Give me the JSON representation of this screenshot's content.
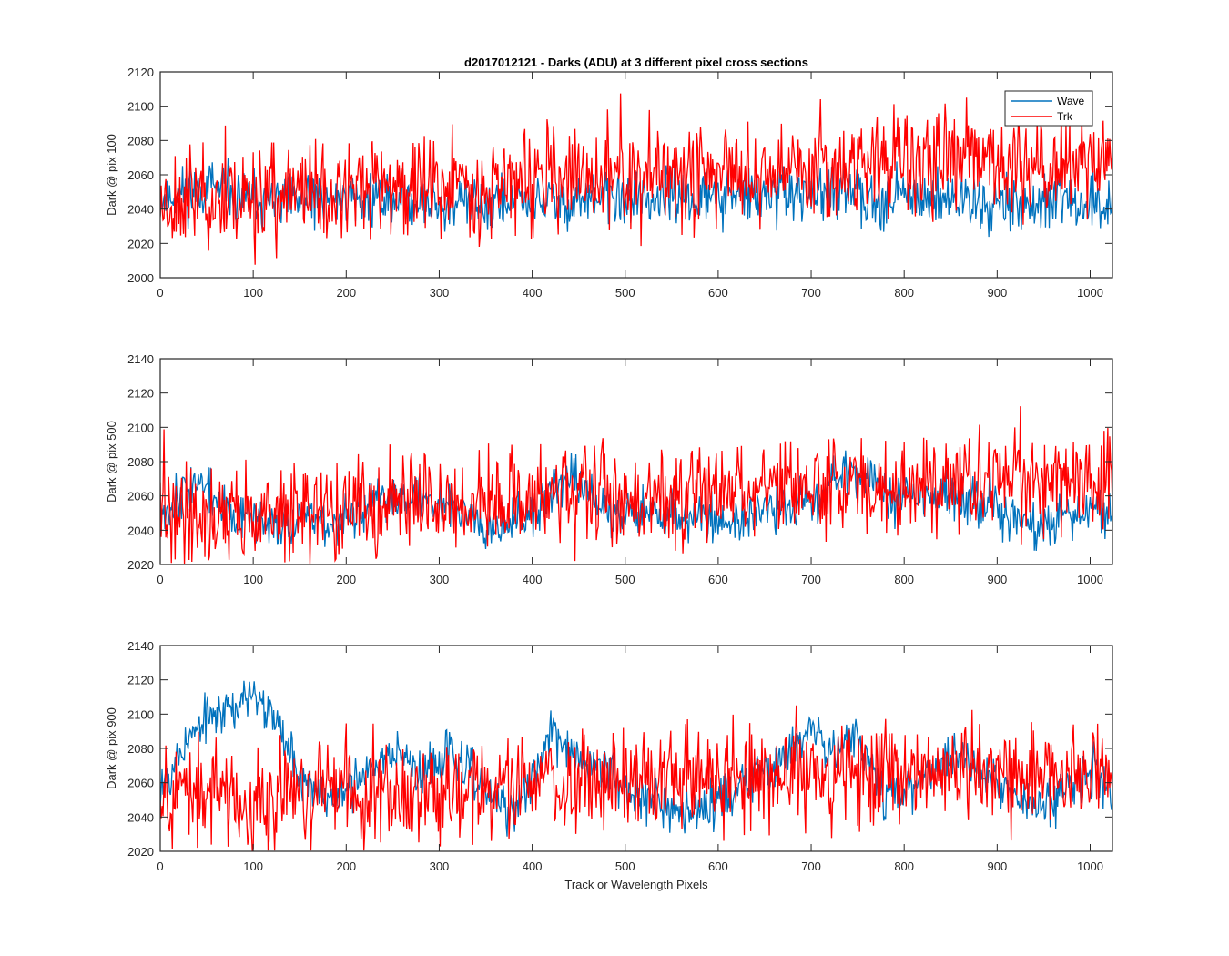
{
  "chart_data": [
    {
      "type": "line",
      "title": "d2017012121 - Darks (ADU) at 3 different pixel cross sections",
      "ylabel": "Dark @ pix 100",
      "xlabel": "",
      "xlim": [
        0,
        1024
      ],
      "ylim": [
        2000,
        2120
      ],
      "xticks": [
        0,
        100,
        200,
        300,
        400,
        500,
        600,
        700,
        800,
        900,
        1000
      ],
      "yticks": [
        2000,
        2020,
        2040,
        2060,
        2080,
        2100,
        2120
      ],
      "legend": {
        "placement": "top-right",
        "entries": [
          "Wave",
          "Trk"
        ]
      },
      "series": [
        {
          "name": "Wave",
          "color": "#0072BD",
          "baseline": [
            [
              0,
              2046
            ],
            [
              50,
              2053
            ],
            [
              100,
              2044
            ],
            [
              150,
              2044
            ],
            [
              200,
              2047
            ],
            [
              300,
              2043
            ],
            [
              400,
              2044
            ],
            [
              500,
              2046
            ],
            [
              600,
              2047
            ],
            [
              700,
              2048
            ],
            [
              800,
              2048
            ],
            [
              900,
              2044
            ],
            [
              1000,
              2043
            ],
            [
              1024,
              2040
            ]
          ],
          "noise": 8,
          "seed": 11
        },
        {
          "name": "Trk",
          "color": "#FF0000",
          "baseline": [
            [
              0,
              2045
            ],
            [
              100,
              2048
            ],
            [
              200,
              2050
            ],
            [
              300,
              2054
            ],
            [
              400,
              2057
            ],
            [
              500,
              2058
            ],
            [
              600,
              2062
            ],
            [
              700,
              2065
            ],
            [
              800,
              2068
            ],
            [
              900,
              2067
            ],
            [
              1000,
              2066
            ],
            [
              1024,
              2067
            ]
          ],
          "noise": 15,
          "seed": 23
        }
      ]
    },
    {
      "type": "line",
      "title": "",
      "ylabel": "Dark @ pix 500",
      "xlabel": "",
      "xlim": [
        0,
        1024
      ],
      "ylim": [
        2020,
        2140
      ],
      "xticks": [
        0,
        100,
        200,
        300,
        400,
        500,
        600,
        700,
        800,
        900,
        1000
      ],
      "yticks": [
        2020,
        2040,
        2060,
        2080,
        2100,
        2120,
        2140
      ],
      "series": [
        {
          "name": "Wave",
          "color": "#0072BD",
          "baseline": [
            [
              0,
              2050
            ],
            [
              40,
              2070
            ],
            [
              80,
              2045
            ],
            [
              150,
              2045
            ],
            [
              200,
              2046
            ],
            [
              250,
              2060
            ],
            [
              300,
              2058
            ],
            [
              350,
              2045
            ],
            [
              400,
              2048
            ],
            [
              440,
              2072
            ],
            [
              480,
              2052
            ],
            [
              550,
              2050
            ],
            [
              600,
              2045
            ],
            [
              650,
              2050
            ],
            [
              700,
              2058
            ],
            [
              740,
              2078
            ],
            [
              780,
              2060
            ],
            [
              850,
              2060
            ],
            [
              900,
              2052
            ],
            [
              940,
              2040
            ],
            [
              1000,
              2054
            ],
            [
              1024,
              2050
            ]
          ],
          "noise": 7,
          "seed": 37
        },
        {
          "name": "Trk",
          "color": "#FF0000",
          "baseline": [
            [
              0,
              2050
            ],
            [
              100,
              2048
            ],
            [
              200,
              2052
            ],
            [
              300,
              2057
            ],
            [
              400,
              2058
            ],
            [
              500,
              2060
            ],
            [
              600,
              2062
            ],
            [
              700,
              2066
            ],
            [
              800,
              2066
            ],
            [
              900,
              2070
            ],
            [
              1000,
              2068
            ],
            [
              1024,
              2066
            ]
          ],
          "noise": 14,
          "seed": 41
        }
      ]
    },
    {
      "type": "line",
      "title": "",
      "ylabel": "Dark @ pix 900",
      "xlabel": "Track or Wavelength Pixels",
      "xlim": [
        0,
        1024
      ],
      "ylim": [
        2020,
        2140
      ],
      "xticks": [
        0,
        100,
        200,
        300,
        400,
        500,
        600,
        700,
        800,
        900,
        1000
      ],
      "yticks": [
        2020,
        2040,
        2060,
        2080,
        2100,
        2120,
        2140
      ],
      "series": [
        {
          "name": "Wave",
          "color": "#0072BD",
          "baseline": [
            [
              0,
              2060
            ],
            [
              30,
              2085
            ],
            [
              60,
              2102
            ],
            [
              100,
              2108
            ],
            [
              130,
              2095
            ],
            [
              150,
              2065
            ],
            [
              180,
              2050
            ],
            [
              220,
              2062
            ],
            [
              255,
              2082
            ],
            [
              280,
              2062
            ],
            [
              310,
              2080
            ],
            [
              350,
              2055
            ],
            [
              380,
              2040
            ],
            [
              420,
              2088
            ],
            [
              460,
              2070
            ],
            [
              500,
              2060
            ],
            [
              560,
              2042
            ],
            [
              620,
              2055
            ],
            [
              660,
              2070
            ],
            [
              700,
              2095
            ],
            [
              720,
              2080
            ],
            [
              750,
              2088
            ],
            [
              780,
              2050
            ],
            [
              820,
              2062
            ],
            [
              860,
              2078
            ],
            [
              900,
              2058
            ],
            [
              950,
              2045
            ],
            [
              1000,
              2070
            ],
            [
              1024,
              2055
            ]
          ],
          "noise": 7,
          "seed": 53
        },
        {
          "name": "Trk",
          "color": "#FF0000",
          "baseline": [
            [
              0,
              2055
            ],
            [
              100,
              2050
            ],
            [
              200,
              2055
            ],
            [
              300,
              2058
            ],
            [
              400,
              2060
            ],
            [
              500,
              2060
            ],
            [
              600,
              2063
            ],
            [
              700,
              2066
            ],
            [
              800,
              2066
            ],
            [
              900,
              2066
            ],
            [
              1000,
              2068
            ],
            [
              1024,
              2070
            ]
          ],
          "noise": 15,
          "seed": 67
        }
      ]
    }
  ]
}
